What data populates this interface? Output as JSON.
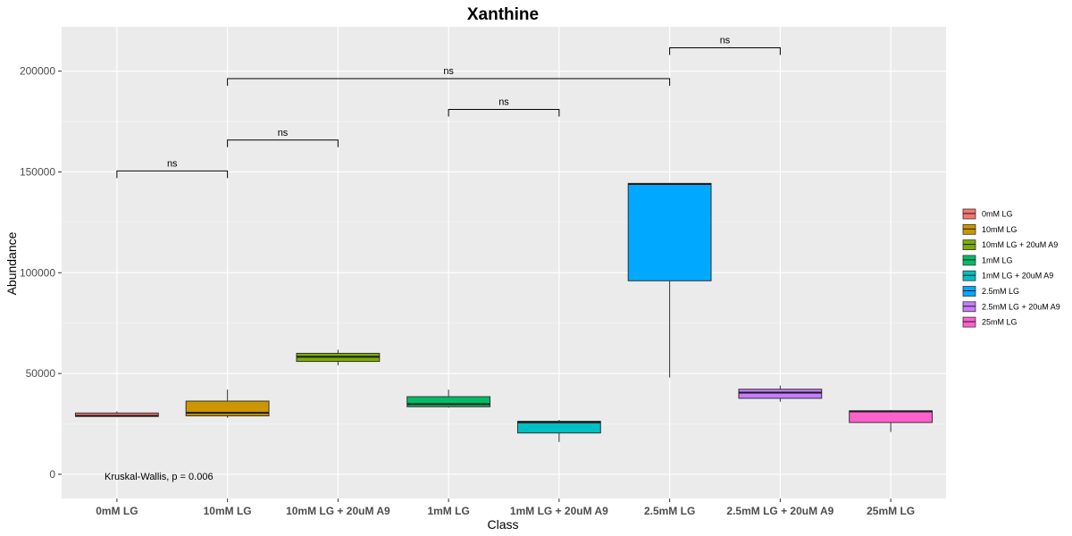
{
  "chart_data": {
    "type": "box",
    "title": "Xanthine",
    "xlabel": "Class",
    "ylabel": "Abundance",
    "ylim": [
      -12000,
      222000
    ],
    "y_ticks": [
      0,
      50000,
      100000,
      150000,
      200000
    ],
    "y_tick_labels": [
      "0",
      "50000",
      "100000",
      "150000",
      "200000"
    ],
    "grid": true,
    "legend_position": "right",
    "categories": [
      "0mM LG",
      "10mM LG",
      "10mM LG + 20uM A9",
      "1mM LG",
      "1mM LG + 20uM A9",
      "2.5mM LG",
      "2.5mM LG + 20uM A9",
      "25mM LG"
    ],
    "colors": [
      "#F8766D",
      "#CD9600",
      "#7CAE00",
      "#00BE67",
      "#00BFC4",
      "#00A9FF",
      "#C77CFF",
      "#FF61CC"
    ],
    "boxes": [
      {
        "min": 28500,
        "q1": 28700,
        "median": 29000,
        "q3": 30400,
        "max": 31200
      },
      {
        "min": 28000,
        "q1": 29000,
        "median": 30500,
        "q3": 36300,
        "max": 42000
      },
      {
        "min": 54000,
        "q1": 56000,
        "median": 58300,
        "q3": 60000,
        "max": 61800
      },
      {
        "min": 33000,
        "q1": 33500,
        "median": 34800,
        "q3": 38500,
        "max": 42000
      },
      {
        "min": 16000,
        "q1": 20500,
        "median": 25800,
        "q3": 26300,
        "max": 27000
      },
      {
        "min": 48000,
        "q1": 96000,
        "median": 144000,
        "q3": 144300,
        "max": 144500
      },
      {
        "min": 36000,
        "q1": 37700,
        "median": 40500,
        "q3": 42200,
        "max": 44000
      },
      {
        "min": 21000,
        "q1": 25700,
        "median": 31200,
        "q3": 31500,
        "max": 31800
      }
    ],
    "comparisons": [
      {
        "from": 0,
        "to": 1,
        "y": 150500,
        "label": "ns"
      },
      {
        "from": 1,
        "to": 2,
        "y": 165800,
        "label": "ns"
      },
      {
        "from": 3,
        "to": 4,
        "y": 181000,
        "label": "ns"
      },
      {
        "from": 1,
        "to": 5,
        "y": 196300,
        "label": "ns"
      },
      {
        "from": 5,
        "to": 6,
        "y": 211600,
        "label": "ns"
      }
    ],
    "test_annotation": "Kruskal-Wallis, p = 0.006"
  }
}
